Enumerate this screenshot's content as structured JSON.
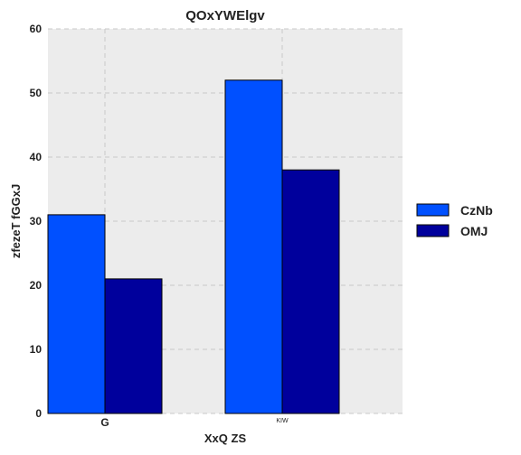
{
  "chart_data": {
    "type": "bar",
    "title": "QOxYWElgv",
    "xlabel": "XxQ ZS",
    "ylabel": "zfezeT fGGxJ",
    "categories": [
      "G",
      "KIW"
    ],
    "series": [
      {
        "name": "CzNb",
        "values": [
          31,
          52
        ],
        "color": "#0050ff"
      },
      {
        "name": "OMJ",
        "values": [
          21,
          38
        ],
        "color": "#00009c"
      }
    ],
    "ylim": [
      0,
      60
    ],
    "yticks": [
      0,
      10,
      20,
      30,
      40,
      50,
      60
    ],
    "grid": true,
    "legend": "right"
  }
}
